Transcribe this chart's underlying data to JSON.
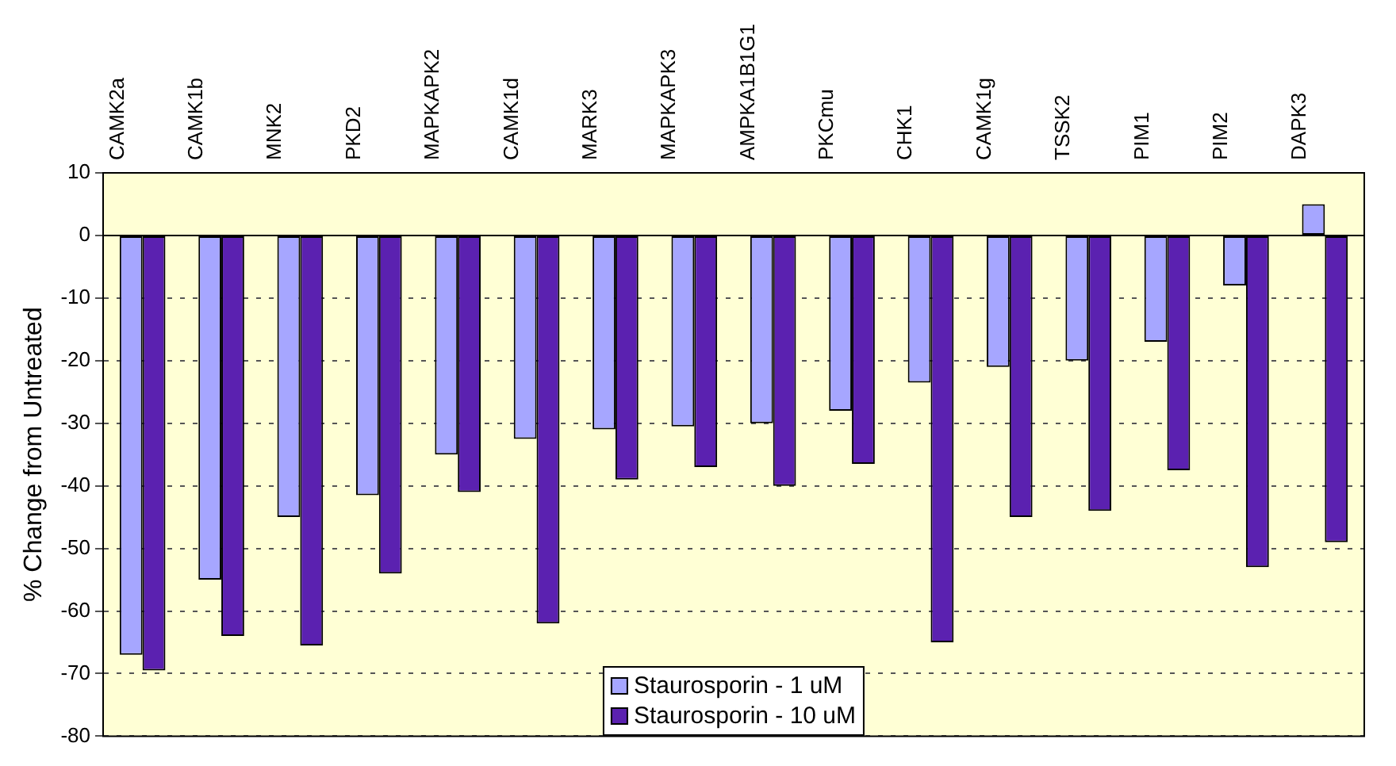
{
  "chart_data": {
    "type": "bar",
    "ylabel": "% Change from Untreated",
    "categories": [
      "CAMK2a",
      "CAMK1b",
      "MNK2",
      "PKD2",
      "MAPKAPK2",
      "CAMK1d",
      "MARK3",
      "MAPKAPK3",
      "AMPKA1B1G1",
      "PKCmu",
      "CHK1",
      "CAMK1g",
      "TSSK2",
      "PIM1",
      "PIM2",
      "DAPK3"
    ],
    "series": [
      {
        "name": "Staurosporin - 1 uM",
        "color": "#a6a6ff",
        "values": [
          -67,
          -55,
          -45,
          -41.5,
          -35,
          -32.5,
          -31,
          -30.5,
          -30,
          -28,
          -23.5,
          -21,
          -20,
          -17,
          -8,
          5
        ]
      },
      {
        "name": "Staurosporin - 10 uM",
        "color": "#5b21b0",
        "values": [
          -69.5,
          -64,
          -65.5,
          -54,
          -41,
          -62,
          -39,
          -37,
          -40,
          -36.5,
          -65,
          -45,
          -44,
          -37.5,
          -53,
          -49
        ]
      }
    ],
    "ylim": [
      -80,
      10
    ],
    "yticks": [
      -80,
      -70,
      -60,
      -50,
      -40,
      -30,
      -20,
      -10,
      0,
      10
    ],
    "grid": "y",
    "legend": "bottom"
  }
}
